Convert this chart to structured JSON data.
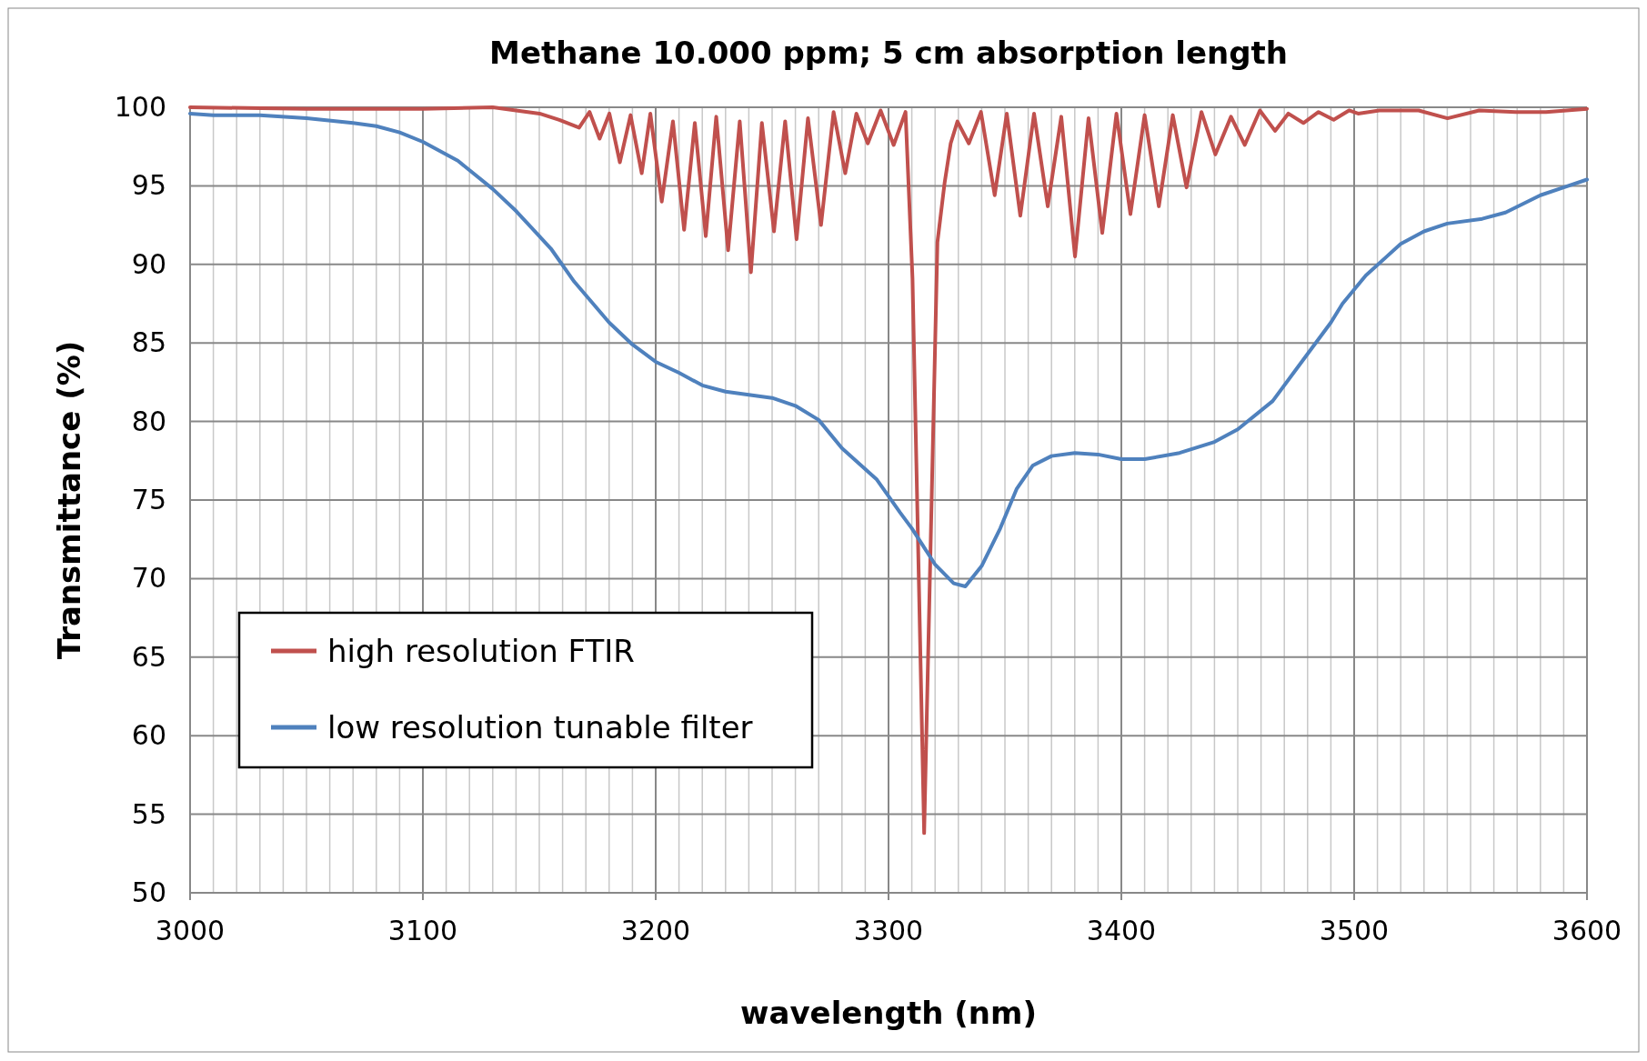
{
  "chart_data": {
    "type": "line",
    "title": "Methane 10.000 ppm; 5 cm absorption length",
    "xlabel": "wavelength (nm)",
    "ylabel": "Transmittance (%)",
    "xlim": [
      3000,
      3600
    ],
    "ylim": [
      50,
      100
    ],
    "xticks": [
      3000,
      {
        "value": 3010,
        "label": null
      },
      {
        "value": 3020,
        "label": null
      },
      {
        "value": 3030,
        "label": null
      },
      {
        "value": 3040,
        "label": null
      },
      {
        "value": 3050,
        "label": null
      },
      {
        "value": 3060,
        "label": null
      },
      {
        "value": 3070,
        "label": null
      },
      {
        "value": 3080,
        "label": null
      },
      {
        "value": 3090,
        "label": null
      },
      3100,
      {
        "value": 3110,
        "label": null
      },
      {
        "value": 3120,
        "label": null
      },
      {
        "value": 3130,
        "label": null
      },
      {
        "value": 3140,
        "label": null
      },
      {
        "value": 3150,
        "label": null
      },
      {
        "value": 3160,
        "label": null
      },
      {
        "value": 3170,
        "label": null
      },
      {
        "value": 3180,
        "label": null
      },
      {
        "value": 3190,
        "label": null
      },
      3200,
      {
        "value": 3210,
        "label": null
      },
      {
        "value": 3220,
        "label": null
      },
      {
        "value": 3230,
        "label": null
      },
      {
        "value": 3240,
        "label": null
      },
      {
        "value": 3250,
        "label": null
      },
      {
        "value": 3260,
        "label": null
      },
      {
        "value": 3270,
        "label": null
      },
      {
        "value": 3280,
        "label": null
      },
      {
        "value": 3290,
        "label": null
      },
      3300,
      {
        "value": 3310,
        "label": null
      },
      {
        "value": 3320,
        "label": null
      },
      {
        "value": 3330,
        "label": null
      },
      {
        "value": 3340,
        "label": null
      },
      {
        "value": 3350,
        "label": null
      },
      {
        "value": 3360,
        "label": null
      },
      {
        "value": 3370,
        "label": null
      },
      {
        "value": 3380,
        "label": null
      },
      {
        "value": 3390,
        "label": null
      },
      3400,
      {
        "value": 3410,
        "label": null
      },
      {
        "value": 3420,
        "label": null
      },
      {
        "value": 3430,
        "label": null
      },
      {
        "value": 3440,
        "label": null
      },
      {
        "value": 3450,
        "label": null
      },
      {
        "value": 3460,
        "label": null
      },
      {
        "value": 3470,
        "label": null
      },
      {
        "value": 3480,
        "label": null
      },
      {
        "value": 3490,
        "label": null
      },
      3500,
      {
        "value": 3510,
        "label": null
      },
      {
        "value": 3520,
        "label": null
      },
      {
        "value": 3530,
        "label": null
      },
      {
        "value": 3540,
        "label": null
      },
      {
        "value": 3550,
        "label": null
      },
      {
        "value": 3560,
        "label": null
      },
      {
        "value": 3570,
        "label": null
      },
      {
        "value": 3580,
        "label": null
      },
      {
        "value": 3590,
        "label": null
      },
      3600
    ],
    "yticks": [
      50,
      55,
      60,
      65,
      70,
      75,
      80,
      85,
      90,
      95,
      100
    ],
    "grid": true,
    "legend": "left",
    "marker": "none",
    "line_style": "solid",
    "series": [
      {
        "name": "high resolution FTIR",
        "color": "#c0504d",
        "x": [
          3000,
          3050,
          3100,
          3130,
          3140,
          3150.1,
          3158.6,
          3167.1,
          3171.6,
          3175.9,
          3180.1,
          3184.6,
          3189.2,
          3194.0,
          3197.7,
          3202.6,
          3207.4,
          3212.2,
          3216.8,
          3221.5,
          3226.0,
          3231.1,
          3236.1,
          3240.9,
          3245.6,
          3250.8,
          3255.6,
          3260.5,
          3265.4,
          3271.0,
          3276.4,
          3281.4,
          3286.2,
          3291.1,
          3296.6,
          3302.2,
          3307.3,
          3310.3,
          3315.3,
          3321,
          3324.1,
          3326.7,
          3329.6,
          3334.5,
          3339.7,
          3345.6,
          3350.8,
          3356.6,
          3362.5,
          3368.4,
          3374.2,
          3380.1,
          3385.9,
          3391.8,
          3397.9,
          3403.9,
          3410.0,
          3416.1,
          3422.1,
          3428.0,
          3434.4,
          3440.4,
          3447.1,
          3453.0,
          3459.5,
          3466.0,
          3471.7,
          3478.2,
          3484.7,
          3491.2,
          3497.8,
          3501.7,
          3510.8,
          3527.7,
          3540.1,
          3553.7,
          3569.4,
          3582.4,
          3600
        ],
        "values": [
          100,
          99.9,
          99.9,
          100,
          99.8,
          99.6,
          99.2,
          98.7,
          99.7,
          98.0,
          99.6,
          96.5,
          99.5,
          95.8,
          99.6,
          94.0,
          99.1,
          92.2,
          99.0,
          91.8,
          99.4,
          90.9,
          99.1,
          89.5,
          99.0,
          92.1,
          99.1,
          91.6,
          99.3,
          92.5,
          99.7,
          95.8,
          99.6,
          97.7,
          99.8,
          97.6,
          99.7,
          89.1,
          53.8,
          91.4,
          95.2,
          97.7,
          99.1,
          97.7,
          99.7,
          94.4,
          99.6,
          93.1,
          99.6,
          93.7,
          99.4,
          90.5,
          99.3,
          92.0,
          99.6,
          93.2,
          99.5,
          93.7,
          99.5,
          94.9,
          99.7,
          97.0,
          99.4,
          97.6,
          99.8,
          98.5,
          99.6,
          99.0,
          99.7,
          99.2,
          99.8,
          99.6,
          99.8,
          99.8,
          99.3,
          99.8,
          99.7,
          99.7,
          99.9
        ]
      },
      {
        "name": "low resolution tunable filter",
        "color": "#4f81bd",
        "x": [
          3000,
          3010,
          3030,
          3050,
          3070,
          3080,
          3090,
          3100,
          3115,
          3130,
          3140,
          3155,
          3165,
          3180,
          3190,
          3200,
          3210,
          3220,
          3230,
          3240,
          3250,
          3260,
          3270,
          3280,
          3295,
          3305,
          3310,
          3320,
          3328,
          3333,
          3340,
          3348,
          3355,
          3362,
          3370,
          3380,
          3390,
          3400,
          3410,
          3425,
          3440,
          3450,
          3465,
          3480,
          3490,
          3495,
          3505,
          3520,
          3530,
          3540,
          3555,
          3565,
          3580,
          3590,
          3600
        ],
        "values": [
          99.6,
          99.5,
          99.5,
          99.3,
          99.0,
          98.8,
          98.4,
          97.8,
          96.6,
          94.8,
          93.4,
          91.0,
          88.9,
          86.3,
          84.9,
          83.8,
          83.1,
          82.3,
          81.9,
          81.7,
          81.5,
          81.0,
          80.1,
          78.3,
          76.3,
          74.2,
          73.2,
          70.9,
          69.7,
          69.5,
          70.8,
          73.2,
          75.7,
          77.2,
          77.8,
          78.0,
          77.9,
          77.6,
          77.6,
          78.0,
          78.7,
          79.5,
          81.3,
          84.3,
          86.3,
          87.5,
          89.3,
          91.3,
          92.1,
          92.6,
          92.9,
          93.3,
          94.4,
          94.9,
          95.4
        ]
      }
    ]
  }
}
